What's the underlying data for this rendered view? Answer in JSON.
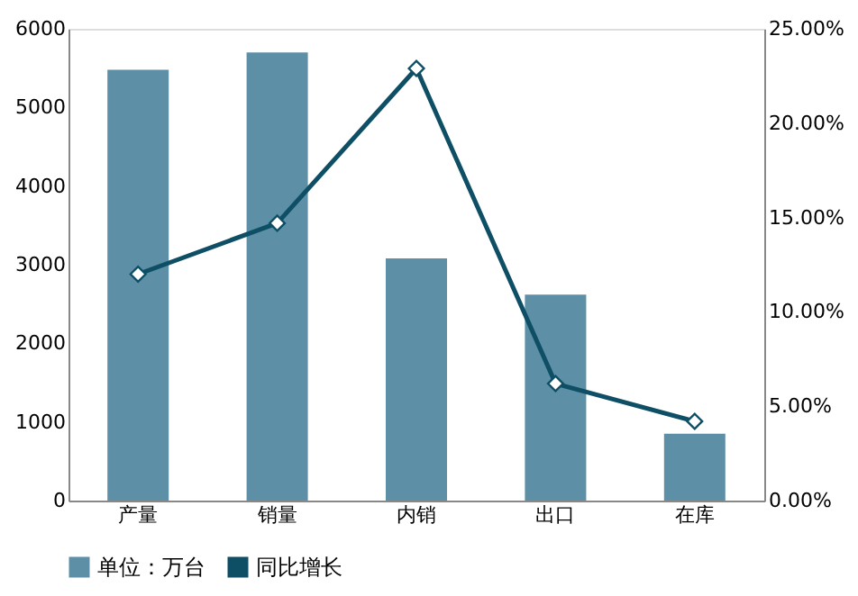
{
  "chart_data": {
    "type": "bar",
    "categories": [
      "产量",
      "销量",
      "内销",
      "出口",
      "在库"
    ],
    "series": [
      {
        "name": "单位：万台",
        "color": "#5d8fa7",
        "values": [
          5480,
          5700,
          3080,
          2620,
          850
        ]
      },
      {
        "name": "同比增长",
        "type": "line",
        "axis": "y2",
        "color": "#0e4f66",
        "marker": "diamond",
        "values": [
          12.0,
          14.7,
          22.9,
          6.2,
          4.2
        ]
      }
    ],
    "ylim": [
      0,
      6000
    ],
    "yticks": [
      0,
      1000,
      2000,
      3000,
      4000,
      5000,
      6000
    ],
    "y2lim": [
      0,
      25
    ],
    "y2ticks": [
      {
        "value": 0,
        "label": "0.00%"
      },
      {
        "value": 5,
        "label": "5.00%"
      },
      {
        "value": 10,
        "label": "10.00%"
      },
      {
        "value": 15,
        "label": "15.00%"
      },
      {
        "value": 20,
        "label": "20.00%"
      },
      {
        "value": 25,
        "label": "25.00%"
      }
    ],
    "grid": false,
    "legend": "bottom"
  }
}
